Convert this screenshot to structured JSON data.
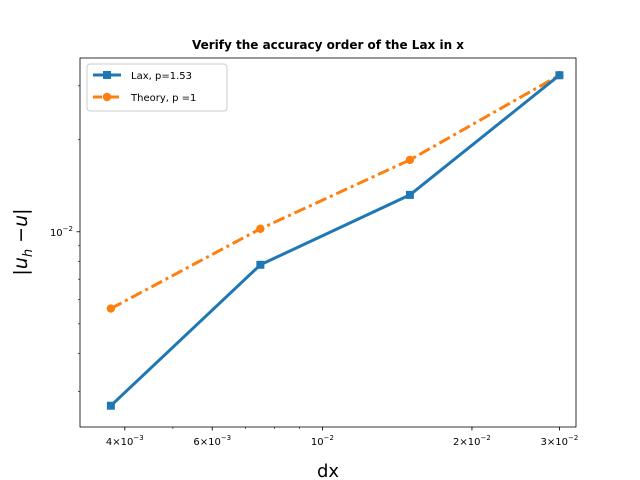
{
  "chart_data": {
    "type": "line",
    "title": "Verify the accuracy order of the Lax in x",
    "xlabel": "dx",
    "ylabel": "|u_h − u|",
    "x_scale": "log",
    "y_scale": "log",
    "xlim": [
      0.00325,
      0.0324
    ],
    "ylim": [
      0.0023,
      0.037
    ],
    "x_ticks": [
      {
        "value": 0.004,
        "base": "4×10",
        "exp": "−3"
      },
      {
        "value": 0.006,
        "base": "6×10",
        "exp": "−3"
      },
      {
        "value": 0.01,
        "base": "10",
        "exp": "−2"
      },
      {
        "value": 0.02,
        "base": "2×10",
        "exp": "−2"
      },
      {
        "value": 0.03,
        "base": "3×10",
        "exp": "−2"
      }
    ],
    "y_ticks": [
      {
        "value": 0.01,
        "base": "10",
        "exp": "−2"
      }
    ],
    "grid": false,
    "legend_position": "upper left",
    "series": [
      {
        "name": "Lax, p=1.53",
        "color": "#1f77b4",
        "marker": "square",
        "linestyle": "solid",
        "x": [
          0.00375,
          0.0075,
          0.015,
          0.03
        ],
        "y": [
          0.0027,
          0.0078,
          0.0132,
          0.0325
        ]
      },
      {
        "name": "Theory, p =1",
        "color": "#ff7f0e",
        "marker": "circle",
        "linestyle": "dashdot",
        "x": [
          0.00375,
          0.0075,
          0.015,
          0.03
        ],
        "y": [
          0.00561,
          0.01023,
          0.01718,
          0.0325
        ]
      }
    ]
  }
}
